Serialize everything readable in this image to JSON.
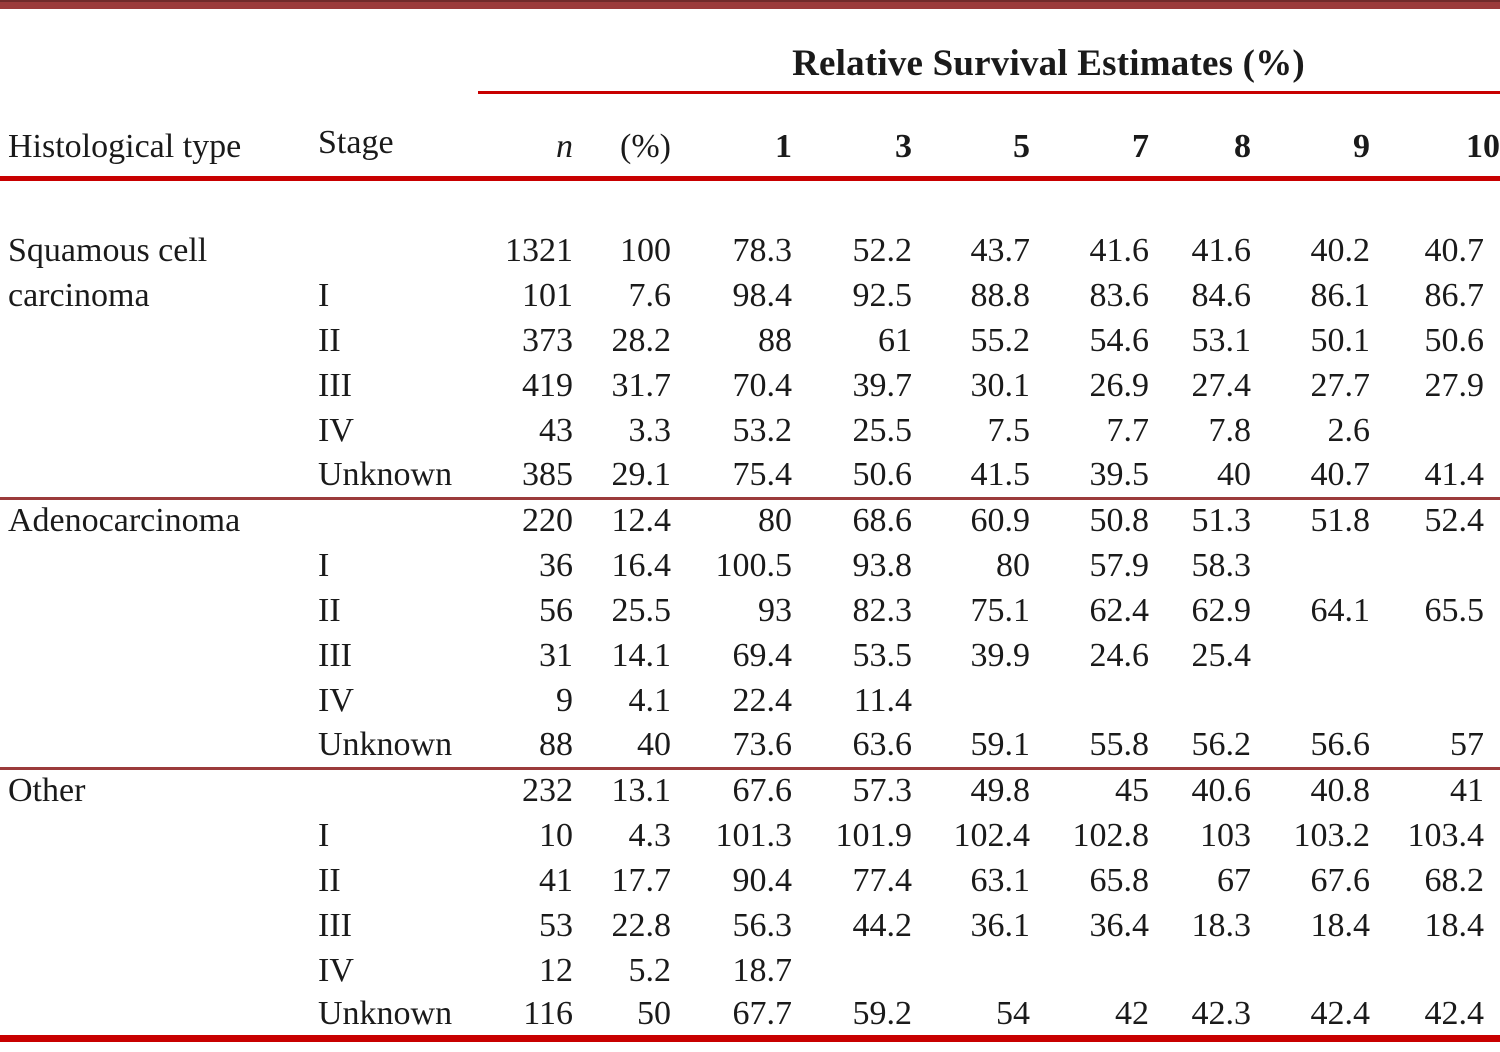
{
  "table": {
    "title": "Relative Survival Estimates (%)",
    "columns": {
      "type": "Histological type",
      "stage": "Stage",
      "n": "n",
      "pct": "(%)",
      "years": [
        "1",
        "3",
        "5",
        "7",
        "8",
        "9",
        "10"
      ]
    },
    "rows": [
      {
        "type": "Squamous cell",
        "stage": "",
        "n": "1321",
        "pct": "100",
        "y": [
          "78.3",
          "52.2",
          "43.7",
          "41.6",
          "41.6",
          "40.2",
          "40.7"
        ],
        "divider": false
      },
      {
        "type": "carcinoma",
        "stage": "I",
        "n": "101",
        "pct": "7.6",
        "y": [
          "98.4",
          "92.5",
          "88.8",
          "83.6",
          "84.6",
          "86.1",
          "86.7"
        ],
        "divider": false
      },
      {
        "type": "",
        "stage": "II",
        "n": "373",
        "pct": "28.2",
        "y": [
          "88",
          "61",
          "55.2",
          "54.6",
          "53.1",
          "50.1",
          "50.6"
        ],
        "divider": false
      },
      {
        "type": "",
        "stage": "III",
        "n": "419",
        "pct": "31.7",
        "y": [
          "70.4",
          "39.7",
          "30.1",
          "26.9",
          "27.4",
          "27.7",
          "27.9"
        ],
        "divider": false
      },
      {
        "type": "",
        "stage": "IV",
        "n": "43",
        "pct": "3.3",
        "y": [
          "53.2",
          "25.5",
          "7.5",
          "7.7",
          "7.8",
          "2.6",
          ""
        ],
        "divider": false
      },
      {
        "type": "",
        "stage": "Unknown",
        "n": "385",
        "pct": "29.1",
        "y": [
          "75.4",
          "50.6",
          "41.5",
          "39.5",
          "40",
          "40.7",
          "41.4"
        ],
        "divider": true
      },
      {
        "type": "Adenocarcinoma",
        "stage": "",
        "n": "220",
        "pct": "12.4",
        "y": [
          "80",
          "68.6",
          "60.9",
          "50.8",
          "51.3",
          "51.8",
          "52.4"
        ],
        "divider": false
      },
      {
        "type": "",
        "stage": "I",
        "n": "36",
        "pct": "16.4",
        "y": [
          "100.5",
          "93.8",
          "80",
          "57.9",
          "58.3",
          "",
          ""
        ],
        "divider": false
      },
      {
        "type": "",
        "stage": "II",
        "n": "56",
        "pct": "25.5",
        "y": [
          "93",
          "82.3",
          "75.1",
          "62.4",
          "62.9",
          "64.1",
          "65.5"
        ],
        "divider": false
      },
      {
        "type": "",
        "stage": "III",
        "n": "31",
        "pct": "14.1",
        "y": [
          "69.4",
          "53.5",
          "39.9",
          "24.6",
          "25.4",
          "",
          ""
        ],
        "divider": false
      },
      {
        "type": "",
        "stage": "IV",
        "n": "9",
        "pct": "4.1",
        "y": [
          "22.4",
          "11.4",
          "",
          "",
          "",
          "",
          ""
        ],
        "divider": false
      },
      {
        "type": "",
        "stage": "Unknown",
        "n": "88",
        "pct": "40",
        "y": [
          "73.6",
          "63.6",
          "59.1",
          "55.8",
          "56.2",
          "56.6",
          "57"
        ],
        "divider": true
      },
      {
        "type": "Other",
        "stage": "",
        "n": "232",
        "pct": "13.1",
        "y": [
          "67.6",
          "57.3",
          "49.8",
          "45",
          "40.6",
          "40.8",
          "41"
        ],
        "divider": false
      },
      {
        "type": "",
        "stage": "I",
        "n": "10",
        "pct": "4.3",
        "y": [
          "101.3",
          "101.9",
          "102.4",
          "102.8",
          "103",
          "103.2",
          "103.4"
        ],
        "divider": false
      },
      {
        "type": "",
        "stage": "II",
        "n": "41",
        "pct": "17.7",
        "y": [
          "90.4",
          "77.4",
          "63.1",
          "65.8",
          "67",
          "67.6",
          "68.2"
        ],
        "divider": false
      },
      {
        "type": "",
        "stage": "III",
        "n": "53",
        "pct": "22.8",
        "y": [
          "56.3",
          "44.2",
          "36.1",
          "36.4",
          "18.3",
          "18.4",
          "18.4"
        ],
        "divider": false
      },
      {
        "type": "",
        "stage": "IV",
        "n": "12",
        "pct": "5.2",
        "y": [
          "18.7",
          "",
          "",
          "",
          "",
          "",
          ""
        ],
        "divider": false
      },
      {
        "type": "",
        "stage": "Unknown",
        "n": "116",
        "pct": "50",
        "y": [
          "67.7",
          "59.2",
          "54",
          "42",
          "42.3",
          "42.4",
          "42.4"
        ],
        "divider": false
      }
    ],
    "accent_colors": {
      "thick_rule_red": "#c80000",
      "outer_bar_brick": "#9b3b3b"
    }
  }
}
